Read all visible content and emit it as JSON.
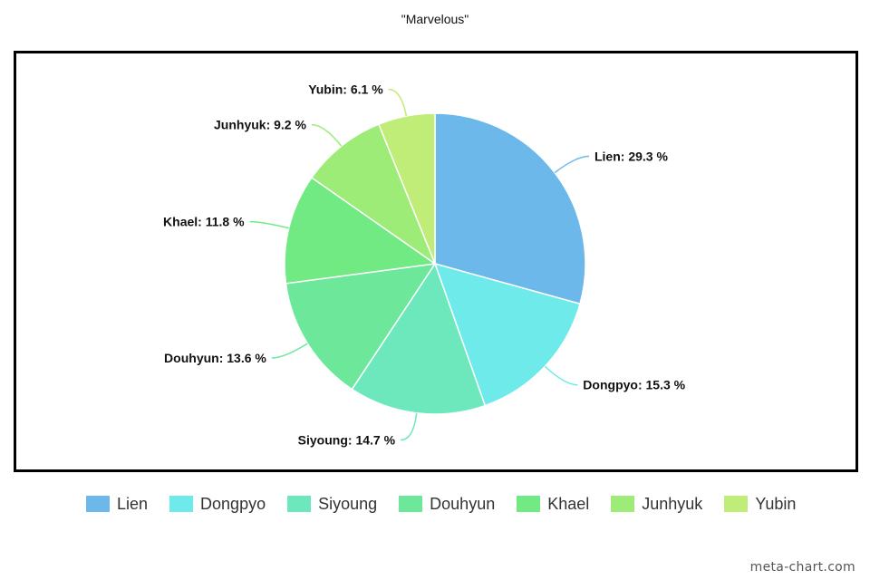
{
  "chart_data": {
    "type": "pie",
    "title": "\"Marvelous\"",
    "slices": [
      {
        "label": "Lien",
        "value": 29.3,
        "display": "Lien: 29.3 %",
        "color": "#6cb8eb"
      },
      {
        "label": "Dongpyo",
        "value": 15.3,
        "display": "Dongpyo: 15.3 %",
        "color": "#6eeaea"
      },
      {
        "label": "Siyoung",
        "value": 14.7,
        "display": "Siyoung: 14.7 %",
        "color": "#6de8bc"
      },
      {
        "label": "Douhyun",
        "value": 13.6,
        "display": "Douhyun: 13.6 %",
        "color": "#6de89b"
      },
      {
        "label": "Khael",
        "value": 11.8,
        "display": "Khael: 11.8 %",
        "color": "#72ea84"
      },
      {
        "label": "Junhyuk",
        "value": 9.2,
        "display": "Junhyuk: 9.2 %",
        "color": "#9eec78"
      },
      {
        "label": "Yubin",
        "value": 6.1,
        "display": "Yubin: 6.1 %",
        "color": "#c0ec78"
      }
    ],
    "legend_position": "bottom"
  },
  "watermark": "meta-chart.com"
}
